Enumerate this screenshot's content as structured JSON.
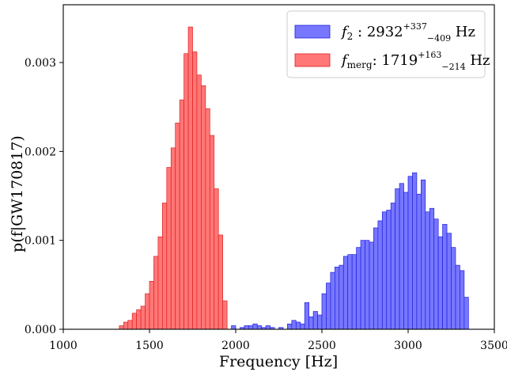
{
  "chart_data": {
    "type": "bar",
    "xlabel": "Frequency [Hz]",
    "ylabel": "p(f|GW170817)",
    "xlim": [
      1000,
      3500
    ],
    "ylim": [
      0,
      0.00365
    ],
    "xticks": [
      "1000",
      "1500",
      "2000",
      "2500",
      "3000",
      "3500"
    ],
    "xtick_values": [
      1000,
      1500,
      2000,
      2500,
      3000,
      3500
    ],
    "yticks": [
      "0.000",
      "0.001",
      "0.002",
      "0.003"
    ],
    "ytick_values": [
      0,
      0.001,
      0.002,
      0.003
    ],
    "legend_position": "top-right",
    "series": [
      {
        "name": "f2 : 2932 +337 −409 Hz",
        "legend": {
          "symbol": "f",
          "sub": "2",
          "sep": " : ",
          "value": "2932",
          "sup": "+337",
          "subv": "−409",
          "unit": " Hz"
        },
        "color": "#7777ff",
        "edge": "#2020e0",
        "bin_width": 25,
        "x": [
          1975,
          2025,
          2050,
          2075,
          2100,
          2125,
          2150,
          2175,
          2200,
          2250,
          2300,
          2325,
          2350,
          2375,
          2400,
          2425,
          2450,
          2475,
          2500,
          2525,
          2550,
          2575,
          2600,
          2625,
          2650,
          2675,
          2700,
          2725,
          2750,
          2775,
          2800,
          2825,
          2850,
          2875,
          2900,
          2925,
          2950,
          2975,
          3000,
          3025,
          3050,
          3075,
          3100,
          3125,
          3150,
          3175,
          3200,
          3225,
          3250,
          3275,
          3300,
          3325
        ],
        "values": [
          4e-05,
          2e-05,
          4e-05,
          4e-05,
          6e-05,
          4e-05,
          2e-05,
          4e-05,
          2e-05,
          2e-05,
          6e-05,
          0.0001,
          8e-05,
          6e-05,
          0.0003,
          0.00014,
          0.0002,
          0.00016,
          0.0004,
          0.00052,
          0.00064,
          0.0007,
          0.00072,
          0.00082,
          0.00084,
          0.00084,
          0.00092,
          0.001,
          0.001,
          0.00098,
          0.00114,
          0.00122,
          0.00132,
          0.00134,
          0.00142,
          0.00158,
          0.00164,
          0.00154,
          0.00172,
          0.00176,
          0.00152,
          0.00168,
          0.00132,
          0.00136,
          0.00124,
          0.00104,
          0.00118,
          0.00108,
          0.00092,
          0.00072,
          0.00066,
          0.00036
        ]
      },
      {
        "name": "fmerg: 1719 +163 −214 Hz",
        "legend": {
          "symbol": "f",
          "sub": "merg",
          "sep": ": ",
          "value": "1719",
          "sup": "+163",
          "subv": "−214",
          "unit": " Hz"
        },
        "color": "#ff7777",
        "edge": "#e02020",
        "bin_width": 25,
        "x": [
          1325,
          1350,
          1375,
          1400,
          1425,
          1450,
          1475,
          1500,
          1525,
          1550,
          1575,
          1600,
          1625,
          1650,
          1675,
          1700,
          1725,
          1750,
          1775,
          1800,
          1825,
          1850,
          1875,
          1900,
          1925
        ],
        "values": [
          4e-05,
          8e-05,
          0.0001,
          0.00018,
          0.00022,
          0.00026,
          0.0004,
          0.00054,
          0.00082,
          0.00104,
          0.00142,
          0.00182,
          0.00204,
          0.00232,
          0.00258,
          0.0031,
          0.0034,
          0.00312,
          0.00286,
          0.00274,
          0.00248,
          0.00218,
          0.00158,
          0.00106,
          0.00032
        ]
      }
    ]
  }
}
